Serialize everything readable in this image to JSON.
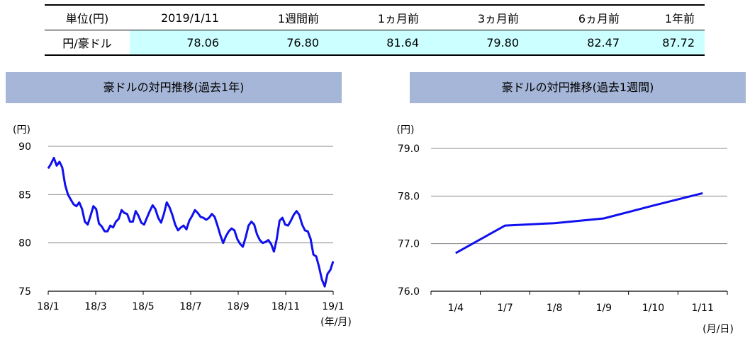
{
  "table": {
    "header": [
      "単位(円)",
      "2019/1/11",
      "1週間前",
      "1ヵ月前",
      "3ヵ月前",
      "6ヵ月前",
      "1年前"
    ],
    "row_label": "円/豪ドル",
    "values": [
      "78.06",
      "76.80",
      "81.64",
      "79.80",
      "82.47",
      "87.72"
    ],
    "highlight_color": "#ccffff"
  },
  "chart_data": [
    {
      "type": "line",
      "title": "豪ドルの対円推移(過去1年)",
      "ylabel": "(円)",
      "xlabel": "(年/月)",
      "ylim": [
        75,
        90
      ],
      "yticks": [
        "90",
        "85",
        "80",
        "75"
      ],
      "xtick_labels": [
        "18/1",
        "18/3",
        "18/5",
        "18/7",
        "18/9",
        "18/11",
        "19/1"
      ],
      "grid": true,
      "color": "#1010ee",
      "series": [
        {
          "values": [
            87.7,
            88.2,
            88.8,
            88.0,
            88.4,
            87.8,
            86.0,
            85.0,
            84.5,
            84.0,
            83.8,
            84.2,
            83.5,
            82.2,
            81.9,
            82.8,
            83.8,
            83.5,
            82.0,
            81.7,
            81.2,
            81.2,
            81.8,
            81.6,
            82.2,
            82.5,
            83.4,
            83.1,
            83.0,
            82.2,
            82.2,
            83.3,
            82.8,
            82.1,
            81.9,
            82.6,
            83.3,
            83.9,
            83.5,
            82.6,
            82.1,
            83.0,
            84.2,
            83.7,
            82.9,
            81.9,
            81.3,
            81.6,
            81.8,
            81.4,
            82.3,
            82.8,
            83.4,
            83.1,
            82.7,
            82.6,
            82.4,
            82.6,
            83.0,
            82.7,
            81.8,
            80.8,
            80.0,
            80.7,
            81.2,
            81.5,
            81.3,
            80.4,
            79.9,
            79.6,
            80.6,
            81.8,
            82.2,
            81.9,
            80.9,
            80.3,
            80.0,
            80.1,
            80.3,
            79.9,
            79.1,
            80.4,
            82.3,
            82.6,
            81.9,
            81.8,
            82.3,
            82.9,
            83.3,
            82.9,
            81.9,
            81.3,
            81.2,
            80.4,
            78.8,
            78.6,
            77.5,
            76.2,
            75.5,
            76.8,
            77.2,
            78.1
          ]
        }
      ]
    },
    {
      "type": "line",
      "title": "豪ドルの対円推移(過去1週間)",
      "ylabel": "(円)",
      "xlabel": "(月/日)",
      "ylim": [
        76.0,
        79.0
      ],
      "yticks": [
        "79.0",
        "78.0",
        "77.0",
        "76.0"
      ],
      "categories": [
        "1/4",
        "1/7",
        "1/8",
        "1/9",
        "1/10",
        "1/11"
      ],
      "grid": true,
      "color": "#1010ee",
      "series": [
        {
          "values": [
            76.8,
            77.38,
            77.43,
            77.53,
            77.8,
            78.06
          ]
        }
      ]
    }
  ]
}
